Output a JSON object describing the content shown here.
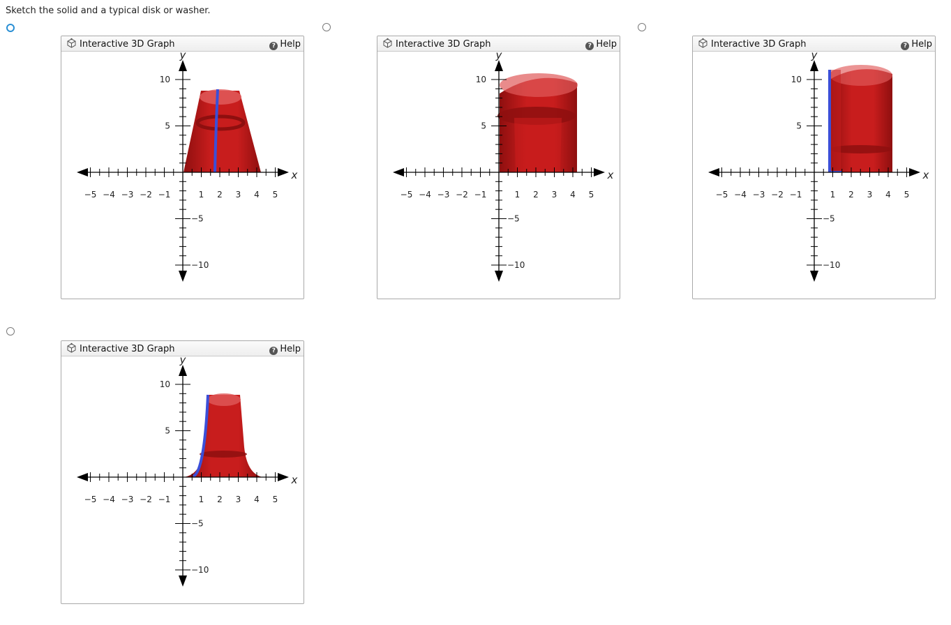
{
  "question": {
    "text": "Sketch the solid and a typical disk or washer."
  },
  "options": [
    {
      "id": "a",
      "selected": true,
      "graph": {
        "title": "Interactive 3D Graph",
        "help_label": "Help",
        "x_label": "x",
        "y_label": "y",
        "x_ticks": [
          "−5",
          "−4",
          "−3",
          "−2",
          "−1",
          "1",
          "2",
          "3",
          "4",
          "5"
        ],
        "y_ticks": [
          "10",
          "5",
          "−5",
          "−10"
        ]
      }
    },
    {
      "id": "b",
      "selected": false,
      "graph": {
        "title": "Interactive 3D Graph",
        "help_label": "Help",
        "x_label": "x",
        "y_label": "y",
        "x_ticks": [
          "−5",
          "−4",
          "−3",
          "−2",
          "−1",
          "1",
          "2",
          "3",
          "4",
          "5"
        ],
        "y_ticks": [
          "10",
          "5",
          "−5",
          "−10"
        ]
      }
    },
    {
      "id": "c",
      "selected": false,
      "graph": {
        "title": "Interactive 3D Graph",
        "help_label": "Help",
        "x_label": "x",
        "y_label": "y",
        "x_ticks": [
          "−5",
          "−4",
          "−3",
          "−2",
          "−1",
          "1",
          "2",
          "3",
          "4",
          "5"
        ],
        "y_ticks": [
          "10",
          "5",
          "−5",
          "−10"
        ]
      }
    },
    {
      "id": "d",
      "selected": false,
      "graph": {
        "title": "Interactive 3D Graph",
        "help_label": "Help",
        "x_label": "x",
        "y_label": "y",
        "x_ticks": [
          "−5",
          "−4",
          "−3",
          "−2",
          "−1",
          "1",
          "2",
          "3",
          "4",
          "5"
        ],
        "y_ticks": [
          "10",
          "5",
          "−5",
          "−10"
        ]
      }
    }
  ],
  "colors": {
    "solid": "#c81d1d",
    "solid_dark": "#8e0f0f",
    "solid_light": "#e05a5a",
    "curve": "#3b4fd8",
    "radio_selected": "#2a8fd4"
  },
  "icons": {
    "graph_icon": "cube-icon",
    "help_icon": "question-circle-icon"
  }
}
